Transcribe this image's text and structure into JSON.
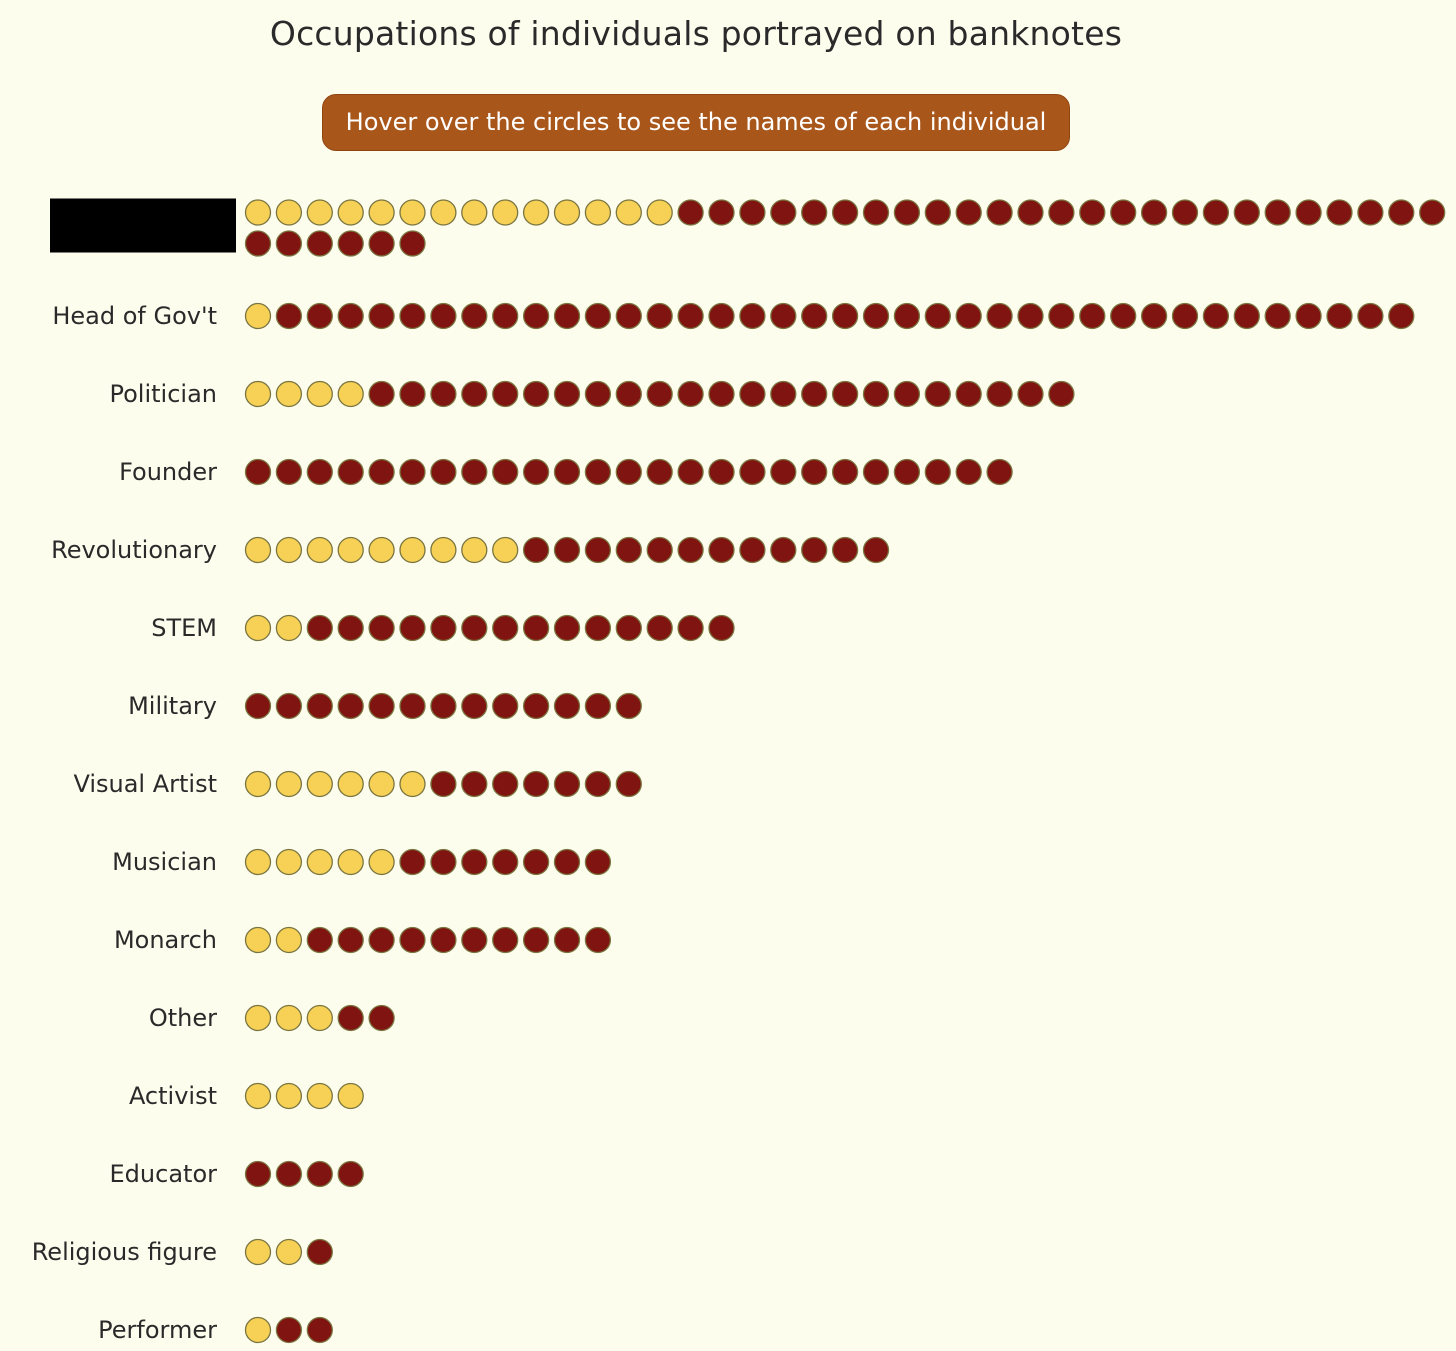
{
  "chart_data": {
    "type": "dot-plot",
    "title": "Occupations of individuals portrayed on banknotes",
    "hint": "Hover over the circles to see the names of each individual",
    "colors": {
      "highlight": "#f7d155",
      "base": "#7f1410",
      "stroke": "#7a7540",
      "background": "#fdfdee",
      "banner": "#a9561b"
    },
    "categories": [
      {
        "label": "",
        "redacted": true,
        "highlight": 14,
        "base": 31
      },
      {
        "label": "Head of Gov't",
        "highlight": 1,
        "base": 37
      },
      {
        "label": "Politician",
        "highlight": 4,
        "base": 23
      },
      {
        "label": "Founder",
        "highlight": 0,
        "base": 25
      },
      {
        "label": "Revolutionary",
        "highlight": 9,
        "base": 12
      },
      {
        "label": "STEM",
        "highlight": 2,
        "base": 14
      },
      {
        "label": "Military",
        "highlight": 0,
        "base": 13
      },
      {
        "label": "Visual Artist",
        "highlight": 6,
        "base": 7
      },
      {
        "label": "Musician",
        "highlight": 5,
        "base": 7
      },
      {
        "label": "Monarch",
        "highlight": 2,
        "base": 10
      },
      {
        "label": "Other",
        "highlight": 3,
        "base": 2
      },
      {
        "label": "Activist",
        "highlight": 4,
        "base": 0
      },
      {
        "label": "Educator",
        "highlight": 0,
        "base": 4
      },
      {
        "label": "Religious figure",
        "highlight": 2,
        "base": 1
      },
      {
        "label": "Performer",
        "highlight": 1,
        "base": 2
      }
    ]
  }
}
